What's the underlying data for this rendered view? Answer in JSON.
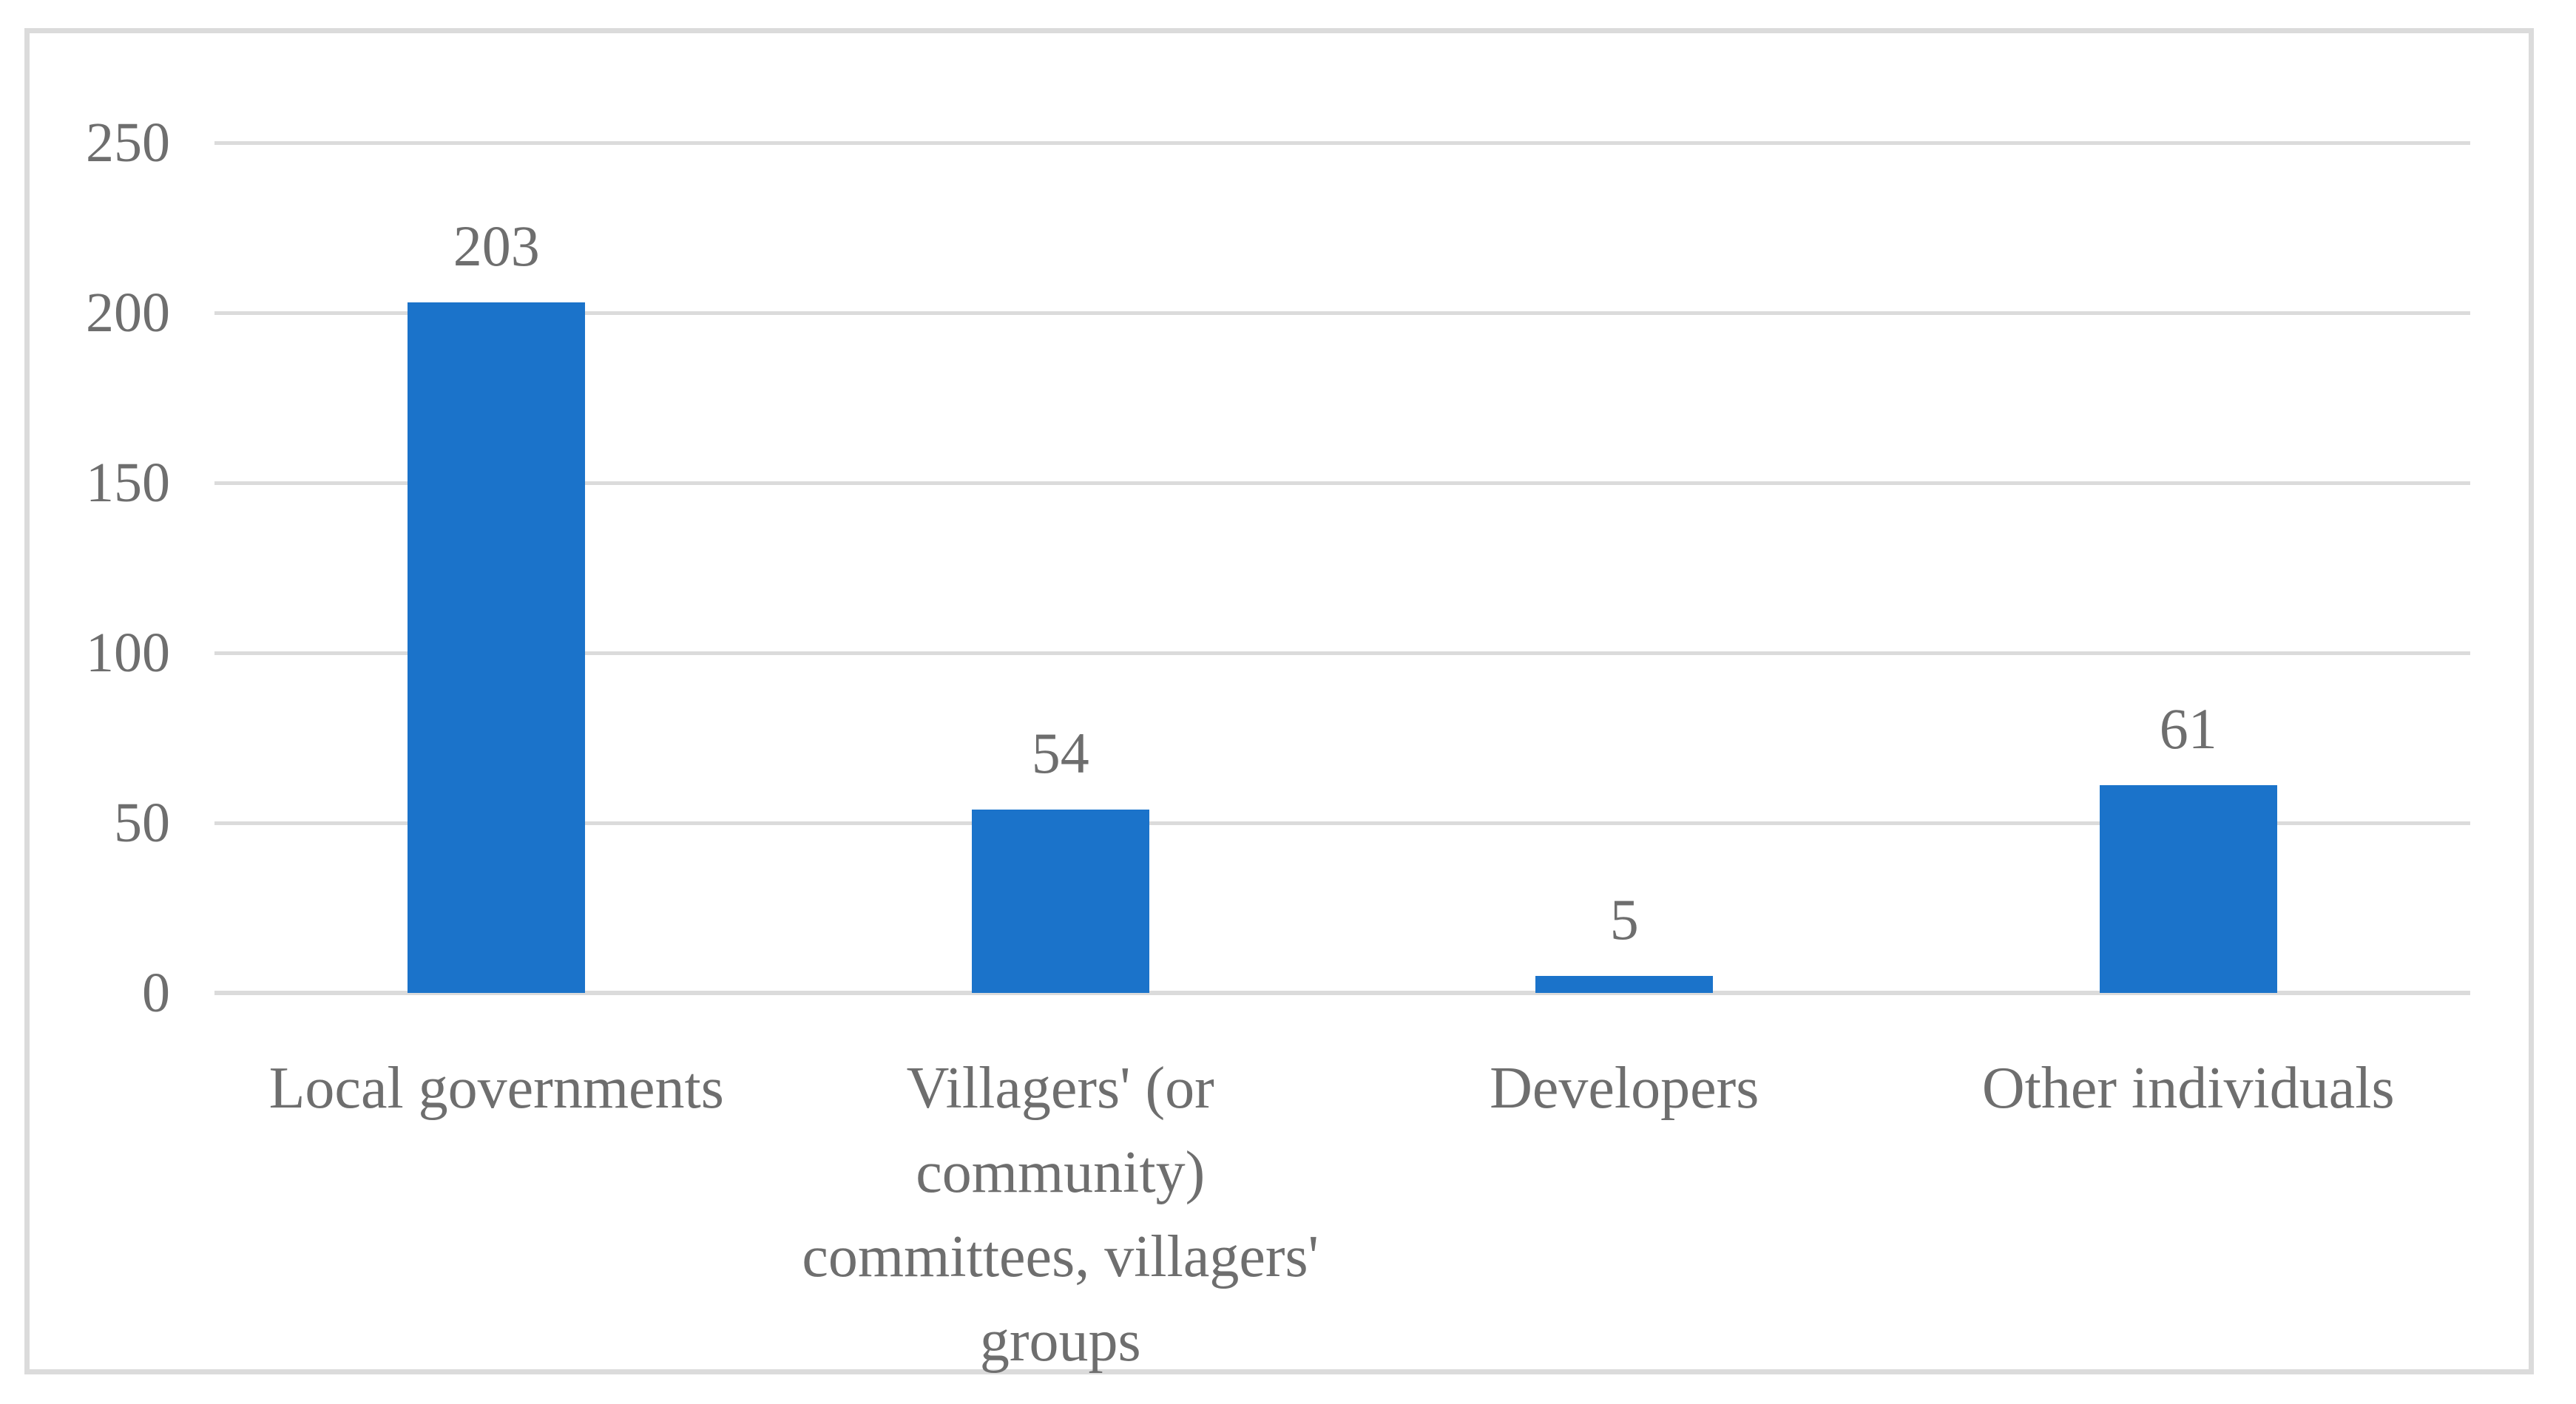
{
  "figure": {
    "background_color": "#FFFFFF",
    "frame_border_color": "#DBDBDB"
  },
  "chart_data": {
    "type": "bar",
    "title": "",
    "xlabel": "",
    "ylabel": "",
    "categories": [
      "Local governments",
      "Villagers' (or community) committees, villagers' groups",
      "Developers",
      "Other individuals"
    ],
    "category_label_lines": [
      [
        "Local governments"
      ],
      [
        "Villagers' (or",
        "community)",
        "committees, villagers'",
        "groups"
      ],
      [
        "Developers"
      ],
      [
        "Other individuals"
      ]
    ],
    "values": [
      203,
      54,
      5,
      61
    ],
    "data_labels": [
      "203",
      "54",
      "5",
      "61"
    ],
    "ylim": [
      0,
      250
    ],
    "yticks": [
      0,
      50,
      100,
      150,
      200,
      250
    ],
    "ytick_labels": [
      "0",
      "50",
      "100",
      "150",
      "200",
      "250"
    ],
    "grid": "horizontal",
    "legend": "none",
    "bar_color": "#1B73CA",
    "gridline_color": "#DBDBDB",
    "text_color": "#6E6E6E"
  }
}
